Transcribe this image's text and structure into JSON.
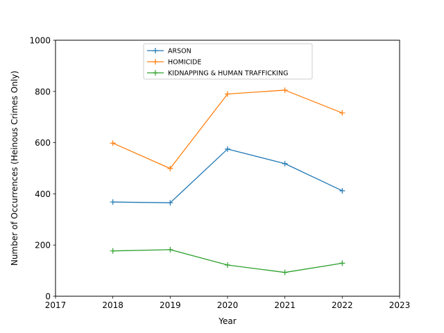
{
  "chart_data": {
    "type": "line",
    "title": "",
    "xlabel": "Year",
    "ylabel": "Number of Occurrences (Heinous Crimes Only)",
    "xlim": [
      2017,
      2023
    ],
    "ylim": [
      0,
      1000
    ],
    "xticks": [
      "2017",
      "2018",
      "2019",
      "2020",
      "2021",
      "2022",
      "2023"
    ],
    "yticks": [
      "0",
      "200",
      "400",
      "600",
      "800",
      "1000"
    ],
    "x": [
      2018,
      2019,
      2020,
      2021,
      2022
    ],
    "grid": false,
    "legend_position": "top-center",
    "marker": "plus",
    "series": [
      {
        "name": "ARSON",
        "color": "#1f77b4",
        "values": [
          368,
          365,
          575,
          518,
          412
        ]
      },
      {
        "name": "HOMICIDE",
        "color": "#ff7f0e",
        "values": [
          598,
          499,
          790,
          805,
          716
        ]
      },
      {
        "name": "KIDNAPPING & HUMAN TRAFFICKING",
        "color": "#2ca02c",
        "values": [
          177,
          182,
          122,
          93,
          129
        ]
      }
    ]
  }
}
